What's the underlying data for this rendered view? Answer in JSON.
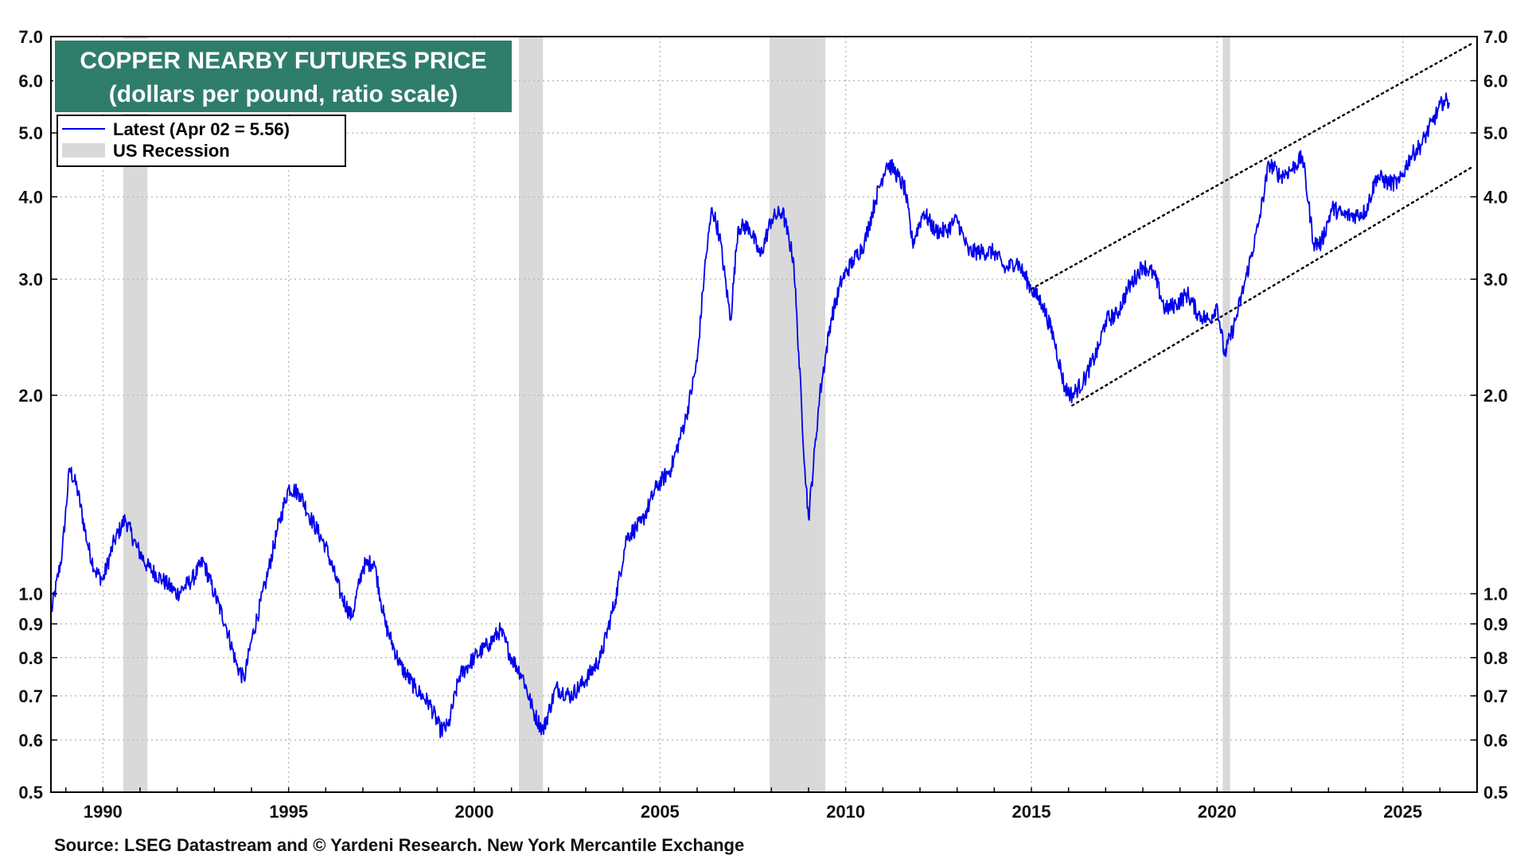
{
  "chart_data": {
    "type": "line",
    "title": "COPPER NEARBY FUTURES PRICE",
    "subtitle": "(dollars per pound, ratio scale)",
    "scale": "log",
    "xlim": [
      1988.6,
      2027.0
    ],
    "ylim": [
      0.5,
      7.0
    ],
    "grid": true,
    "y_ticks": [
      0.5,
      0.6,
      0.7,
      0.8,
      0.9,
      1.0,
      2.0,
      3.0,
      4.0,
      5.0,
      6.0,
      7.0
    ],
    "y_tick_labels": [
      "0.5",
      "0.6",
      "0.7",
      "0.8",
      "0.9",
      "1.0",
      "2.0",
      "3.0",
      "4.0",
      "5.0",
      "6.0",
      "7.0"
    ],
    "x_ticks": [
      1990,
      1995,
      2000,
      2005,
      2010,
      2015,
      2020,
      2025
    ],
    "x_tick_labels": [
      "1990",
      "1995",
      "2000",
      "2005",
      "2010",
      "2015",
      "2020",
      "2025"
    ],
    "legend": {
      "placement": "top-left",
      "entries": [
        {
          "label": "Latest  (Apr 02 = 5.56)",
          "color": "#0000ee",
          "kind": "line"
        },
        {
          "label": "US Recession",
          "color": "#d9d9d9",
          "kind": "patch"
        }
      ]
    },
    "recessions": [
      [
        1990.55,
        1991.2
      ],
      [
        2001.2,
        2001.85
      ],
      [
        2007.95,
        2009.45
      ],
      [
        2020.15,
        2020.35
      ]
    ],
    "series": [
      {
        "name": "Latest",
        "color": "#0000ee",
        "x": [
          1988.6,
          1988.9,
          1989.1,
          1989.3,
          1989.6,
          1989.8,
          1990.0,
          1990.3,
          1990.6,
          1990.9,
          1991.2,
          1991.6,
          1992.0,
          1992.4,
          1992.7,
          1993.0,
          1993.3,
          1993.6,
          1993.8,
          1994.0,
          1994.4,
          1994.7,
          1995.0,
          1995.3,
          1995.6,
          1996.0,
          1996.4,
          1996.7,
          1997.0,
          1997.3,
          1997.6,
          1998.0,
          1998.4,
          1998.8,
          1999.1,
          1999.3,
          1999.6,
          2000.0,
          2000.4,
          2000.7,
          2001.0,
          2001.3,
          2001.6,
          2001.85,
          2002.2,
          2002.6,
          2003.0,
          2003.4,
          2003.8,
          2004.1,
          2004.5,
          2004.9,
          2005.3,
          2005.7,
          2006.0,
          2006.2,
          2006.4,
          2006.6,
          2006.9,
          2007.1,
          2007.4,
          2007.7,
          2008.0,
          2008.3,
          2008.6,
          2008.9,
          2009.0,
          2009.3,
          2009.6,
          2009.9,
          2010.2,
          2010.5,
          2010.8,
          2011.1,
          2011.3,
          2011.6,
          2011.8,
          2012.1,
          2012.4,
          2012.7,
          2013.0,
          2013.3,
          2013.6,
          2014.0,
          2014.3,
          2014.6,
          2015.0,
          2015.3,
          2015.6,
          2015.9,
          2016.1,
          2016.4,
          2016.8,
          2017.0,
          2017.3,
          2017.6,
          2018.0,
          2018.3,
          2018.6,
          2018.9,
          2019.2,
          2019.5,
          2019.8,
          2020.0,
          2020.2,
          2020.5,
          2020.8,
          2021.1,
          2021.4,
          2021.7,
          2022.0,
          2022.3,
          2022.6,
          2022.8,
          2023.1,
          2023.4,
          2023.7,
          2024.0,
          2024.3,
          2024.6,
          2024.9,
          2025.2,
          2025.5,
          2025.8,
          2026.1,
          2026.25
        ],
        "values": [
          0.93,
          1.15,
          1.55,
          1.45,
          1.18,
          1.08,
          1.05,
          1.2,
          1.3,
          1.18,
          1.1,
          1.05,
          1.0,
          1.05,
          1.12,
          1.0,
          0.9,
          0.78,
          0.74,
          0.85,
          1.05,
          1.25,
          1.45,
          1.42,
          1.3,
          1.18,
          1.0,
          0.92,
          1.1,
          1.12,
          0.9,
          0.78,
          0.72,
          0.68,
          0.62,
          0.63,
          0.75,
          0.8,
          0.84,
          0.88,
          0.8,
          0.75,
          0.66,
          0.62,
          0.72,
          0.7,
          0.74,
          0.8,
          0.98,
          1.22,
          1.28,
          1.45,
          1.55,
          1.85,
          2.25,
          3.1,
          3.85,
          3.5,
          2.6,
          3.6,
          3.6,
          3.25,
          3.7,
          3.8,
          3.2,
          1.55,
          1.3,
          2.0,
          2.6,
          3.0,
          3.2,
          3.4,
          3.95,
          4.5,
          4.4,
          4.1,
          3.4,
          3.8,
          3.55,
          3.55,
          3.7,
          3.3,
          3.3,
          3.3,
          3.1,
          3.2,
          2.9,
          2.75,
          2.45,
          2.05,
          2.0,
          2.1,
          2.35,
          2.6,
          2.65,
          2.9,
          3.15,
          3.05,
          2.7,
          2.75,
          2.85,
          2.65,
          2.6,
          2.75,
          2.3,
          2.6,
          3.05,
          3.6,
          4.5,
          4.3,
          4.4,
          4.6,
          3.4,
          3.4,
          3.85,
          3.75,
          3.75,
          3.8,
          4.3,
          4.2,
          4.2,
          4.6,
          4.8,
          5.2,
          5.6,
          5.56
        ]
      }
    ],
    "trend_channel": {
      "upper": {
        "x": [
          2015.0,
          2026.9
        ],
        "values": [
          2.9,
          6.85
        ]
      },
      "lower": {
        "x": [
          2016.1,
          2026.9
        ],
        "values": [
          1.93,
          4.45
        ]
      }
    }
  },
  "source_note": "Source: LSEG Datastream and © Yardeni Research. New York Mercantile Exchange"
}
